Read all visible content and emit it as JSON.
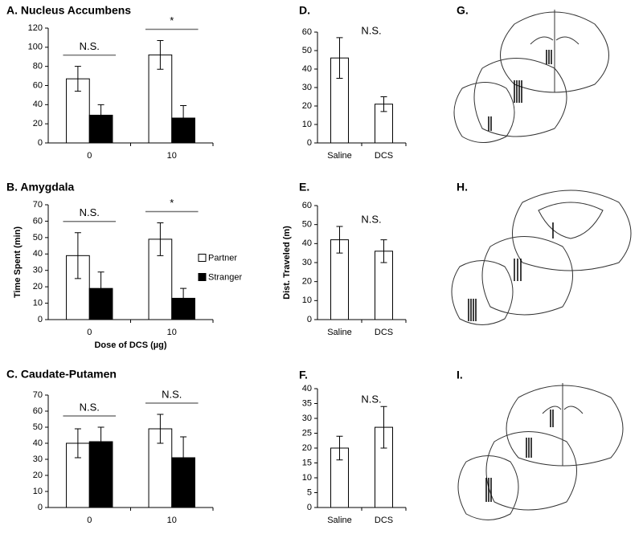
{
  "chart_data": [
    {
      "type": "bar",
      "title": "A. Nucleus Accumbens",
      "categories": [
        "0",
        "10"
      ],
      "series": [
        {
          "color": "#ffffff",
          "values": [
            67,
            92
          ],
          "errors": [
            13,
            15
          ]
        },
        {
          "color": "#000000",
          "values": [
            29,
            26
          ],
          "errors": [
            11,
            13
          ]
        }
      ],
      "ylim": [
        0,
        120
      ],
      "yticks": [
        0,
        20,
        40,
        60,
        80,
        100,
        120
      ],
      "annotations": [
        "N.S.",
        "*"
      ]
    },
    {
      "type": "bar",
      "title": "B. Amygdala",
      "categories": [
        "0",
        "10"
      ],
      "ylabel": "Time Spent (min)",
      "xlabel": "Dose of DCS (µg)",
      "series": [
        {
          "name": "Partner",
          "color": "#ffffff",
          "values": [
            39,
            49
          ],
          "errors": [
            14,
            10
          ]
        },
        {
          "name": "Stranger",
          "color": "#000000",
          "values": [
            19,
            13
          ],
          "errors": [
            10,
            6
          ]
        }
      ],
      "ylim": [
        0,
        70
      ],
      "yticks": [
        0,
        10,
        20,
        30,
        40,
        50,
        60,
        70
      ],
      "annotations": [
        "N.S.",
        "*"
      ],
      "legend": "right"
    },
    {
      "type": "bar",
      "title": "C. Caudate-Putamen",
      "categories": [
        "0",
        "10"
      ],
      "series": [
        {
          "color": "#ffffff",
          "values": [
            40,
            49
          ],
          "errors": [
            9,
            9
          ]
        },
        {
          "color": "#000000",
          "values": [
            41,
            31
          ],
          "errors": [
            9,
            13
          ]
        }
      ],
      "ylim": [
        0,
        70
      ],
      "yticks": [
        0,
        10,
        20,
        30,
        40,
        50,
        60,
        70
      ],
      "annotations": [
        "N.S.",
        "N.S."
      ]
    },
    {
      "type": "bar",
      "title": "D.",
      "categories": [
        "Saline",
        "DCS"
      ],
      "series": [
        {
          "color": "#ffffff",
          "values": [
            46,
            21
          ],
          "errors": [
            11,
            4
          ]
        }
      ],
      "ylim": [
        0,
        60
      ],
      "yticks": [
        0,
        10,
        20,
        30,
        40,
        50,
        60
      ],
      "annotations": [
        "N.S."
      ]
    },
    {
      "type": "bar",
      "title": "E.",
      "categories": [
        "Saline",
        "DCS"
      ],
      "ylabel": "Dist. Traveled (m)",
      "series": [
        {
          "color": "#ffffff",
          "values": [
            42,
            36
          ],
          "errors": [
            7,
            6
          ]
        }
      ],
      "ylim": [
        0,
        60
      ],
      "yticks": [
        0,
        10,
        20,
        30,
        40,
        50,
        60
      ],
      "annotations": [
        "N.S."
      ]
    },
    {
      "type": "bar",
      "title": "F.",
      "categories": [
        "Saline",
        "DCS"
      ],
      "series": [
        {
          "color": "#ffffff",
          "values": [
            20,
            27
          ],
          "errors": [
            4,
            7
          ]
        }
      ],
      "ylim": [
        0,
        40
      ],
      "yticks": [
        0,
        5,
        10,
        15,
        20,
        25,
        30,
        35,
        40
      ],
      "annotations": [
        "N.S."
      ]
    }
  ],
  "diagram_labels": [
    "G.",
    "H.",
    "I."
  ]
}
